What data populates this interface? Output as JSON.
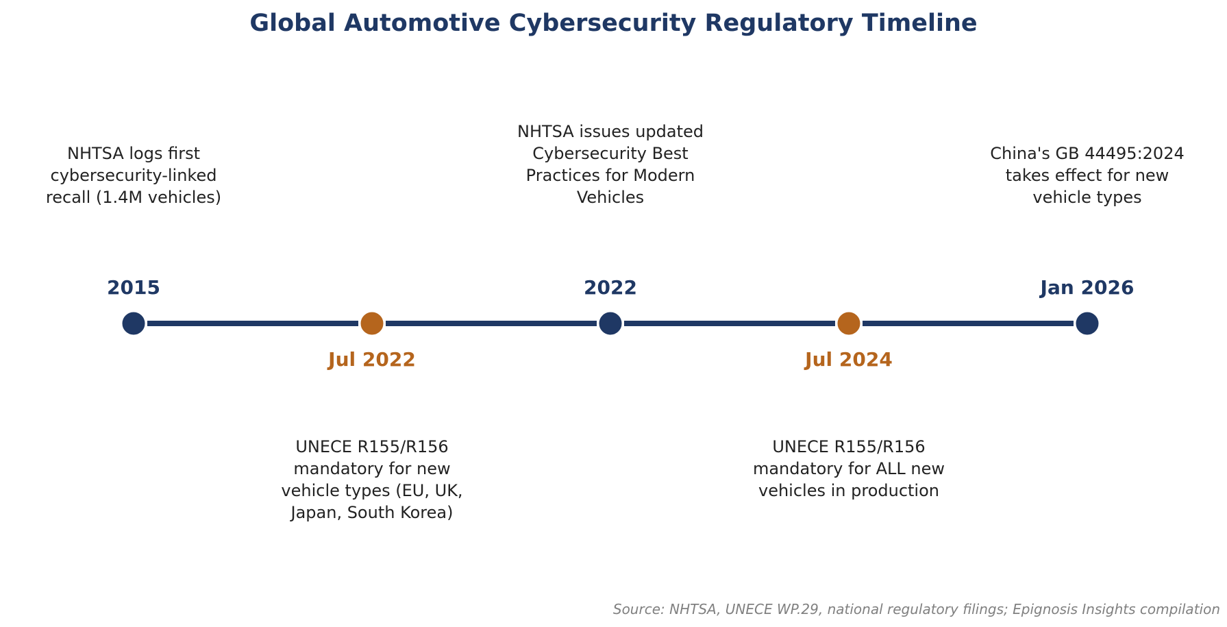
{
  "title": "Global Automotive Cybersecurity Regulatory Timeline",
  "source": "Source: NHTSA, UNECE WP.29, national regulatory filings; Epignosis Insights compilation",
  "colors": {
    "primary": "#1f3864",
    "accent": "#b5651d",
    "text": "#222222",
    "source": "#808080"
  },
  "events": [
    {
      "date": "2015",
      "description": "NHTSA logs first cybersecurity-linked recall (1.4M vehicles)",
      "lines": [
        "NHTSA logs first",
        "cybersecurity-linked",
        "recall (1.4M vehicles)"
      ],
      "side": "above",
      "color_key": "primary"
    },
    {
      "date": "Jul 2022",
      "description": "UNECE R155/R156 mandatory for new vehicle types (EU, UK, Japan, South Korea)",
      "lines": [
        "UNECE R155/R156",
        "mandatory for new",
        "vehicle types (EU, UK,",
        "Japan, South Korea)"
      ],
      "side": "below",
      "color_key": "accent"
    },
    {
      "date": "2022",
      "description": "NHTSA issues updated Cybersecurity Best Practices for Modern Vehicles",
      "lines": [
        "NHTSA issues updated",
        "Cybersecurity Best",
        "Practices for Modern",
        "Vehicles"
      ],
      "side": "above",
      "color_key": "primary"
    },
    {
      "date": "Jul 2024",
      "description": "UNECE R155/R156 mandatory for ALL new vehicles in production",
      "lines": [
        "UNECE R155/R156",
        "mandatory for ALL new",
        "vehicles in production"
      ],
      "side": "below",
      "color_key": "accent"
    },
    {
      "date": "Jan 2026",
      "description": "China's GB 44495:2024 takes effect for new vehicle types",
      "lines": [
        "China's GB 44495:2024",
        "takes effect for new",
        "vehicle types"
      ],
      "side": "above",
      "color_key": "primary"
    }
  ]
}
